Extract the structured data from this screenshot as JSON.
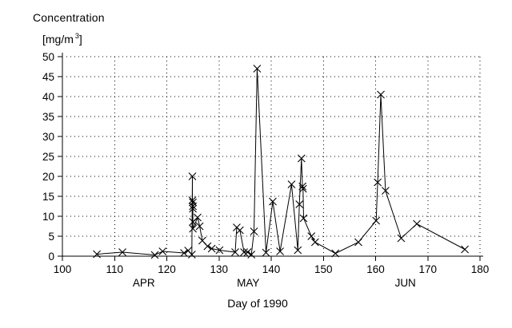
{
  "header": {
    "title": "Concentration",
    "unit_prefix": "[mg/m",
    "unit_sup": "3",
    "unit_suffix": "]"
  },
  "colors": {
    "line": "#000000",
    "grid": "#000000",
    "axis": "#000000",
    "background": "#ffffff"
  },
  "chart_data": {
    "type": "line",
    "title": "Concentration [mg/m3]",
    "xlabel": "Day of 1990",
    "ylabel": "Concentration [mg/m3]",
    "xlim": [
      100,
      180
    ],
    "ylim": [
      0,
      50
    ],
    "x_ticks": [
      100,
      110,
      120,
      130,
      140,
      150,
      160,
      170,
      180
    ],
    "y_ticks": [
      0,
      5,
      10,
      15,
      20,
      25,
      30,
      35,
      40,
      45,
      50
    ],
    "grid": "dotted",
    "legend": "none",
    "marker": "x",
    "month_labels": [
      {
        "label": "APR",
        "day": 115.6
      },
      {
        "label": "MAY",
        "day": 135.6
      },
      {
        "label": "JUN",
        "day": 165.7
      }
    ],
    "points": [
      [
        106.6,
        0.5
      ],
      [
        111.5,
        1.0
      ],
      [
        117.7,
        0.3
      ],
      [
        119.2,
        1.2
      ],
      [
        123.3,
        0.8
      ],
      [
        124.1,
        1.4
      ],
      [
        124.8,
        0.4
      ],
      [
        124.9,
        20.0
      ],
      [
        124.9,
        14.0
      ],
      [
        125.0,
        13.5
      ],
      [
        125.0,
        12.5
      ],
      [
        125.0,
        11.9
      ],
      [
        125.0,
        8.6
      ],
      [
        125.0,
        6.9
      ],
      [
        125.9,
        9.7
      ],
      [
        126.3,
        7.5
      ],
      [
        126.8,
        3.9
      ],
      [
        127.8,
        2.5
      ],
      [
        128.6,
        1.9
      ],
      [
        130.1,
        1.5
      ],
      [
        133.1,
        1.0
      ],
      [
        133.4,
        7.2
      ],
      [
        134.0,
        6.5
      ],
      [
        134.8,
        1.0
      ],
      [
        135.5,
        1.0
      ],
      [
        136.2,
        0.4
      ],
      [
        136.7,
        6.2
      ],
      [
        137.3,
        47.0
      ],
      [
        139.0,
        0.9
      ],
      [
        140.3,
        13.7
      ],
      [
        141.7,
        1.2
      ],
      [
        143.9,
        18.0
      ],
      [
        145.1,
        1.5
      ],
      [
        145.4,
        13.0
      ],
      [
        145.8,
        24.5
      ],
      [
        146.0,
        17.5
      ],
      [
        146.1,
        16.9
      ],
      [
        146.2,
        9.5
      ],
      [
        147.7,
        5.0
      ],
      [
        148.4,
        3.5
      ],
      [
        152.3,
        0.7
      ],
      [
        156.7,
        3.5
      ],
      [
        160.1,
        8.9
      ],
      [
        160.4,
        18.5
      ],
      [
        161.0,
        40.5
      ],
      [
        161.9,
        16.4
      ],
      [
        164.9,
        4.5
      ],
      [
        167.9,
        8.1
      ],
      [
        177.1,
        1.7
      ]
    ]
  }
}
